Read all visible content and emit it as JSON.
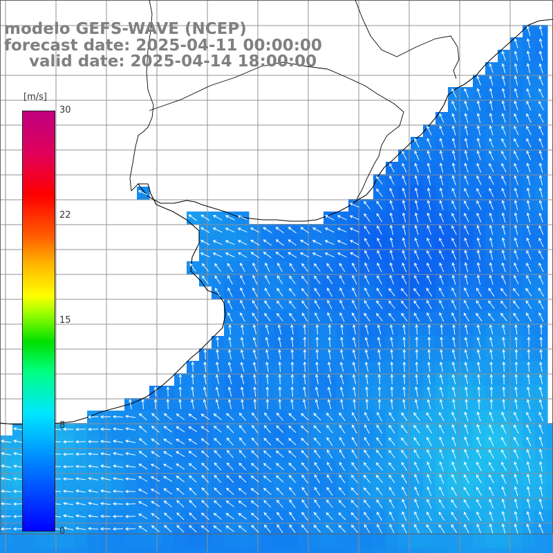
{
  "title": {
    "line1": "modelo GEFS-WAVE (NCEP)",
    "line2": "forecast date: 2025-04-11 00:00:00",
    "line3": "valid date: 2025-04-14 18:00:00"
  },
  "colorbar": {
    "unit": "[m/s]",
    "ticks": [
      "30",
      "22",
      "15",
      "8",
      "0"
    ],
    "tick_values": [
      30,
      22,
      15,
      8,
      0
    ],
    "min": 0,
    "max": 30,
    "colors": [
      "#0000ff",
      "#0088ff",
      "#00e6ff",
      "#00ff80",
      "#00e000",
      "#ffff00",
      "#ff6000",
      "#ff0000",
      "#c0007f"
    ]
  },
  "map": {
    "land_color": "#ffffff",
    "grid_color": "#909090",
    "coast_color": "#000000",
    "arrow_color": "#ffffff",
    "water_color_low": "#0a5cf0",
    "water_color_high": "#22c8f0",
    "wind_speed_range": [
      3,
      8
    ],
    "predominant_flow": "north-westward"
  }
}
